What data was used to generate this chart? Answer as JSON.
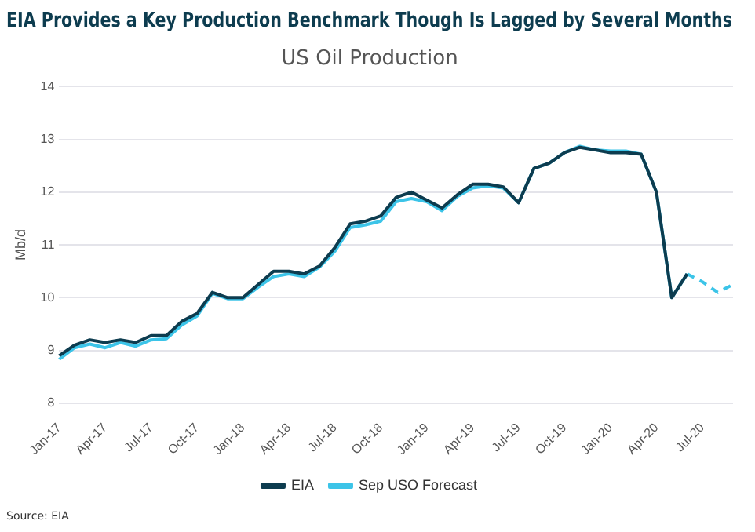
{
  "chart_data": {
    "type": "line",
    "title": "EIA Provides a Key Production Benchmark Though Is Lagged by Several Months",
    "subtitle": "US Oil Production",
    "ylabel": "Mb/d",
    "categories": [
      "Jan-17",
      null,
      null,
      "Apr-17",
      null,
      null,
      "Jul-17",
      null,
      null,
      "Oct-17",
      null,
      null,
      "Jan-18",
      null,
      null,
      "Apr-18",
      null,
      null,
      "Jul-18",
      null,
      null,
      "Oct-18",
      null,
      null,
      "Jan-19",
      null,
      null,
      "Apr-19",
      null,
      null,
      "Jul-19",
      null,
      null,
      "Oct-19",
      null,
      null,
      "Jan-20",
      null,
      null,
      "Apr-20",
      null,
      null,
      "Jul-20",
      null,
      null
    ],
    "series": [
      {
        "name": "Sep USO Forecast",
        "color": "#3cc4e8",
        "line_style": "solid",
        "values": [
          8.83,
          9.05,
          9.12,
          9.05,
          9.15,
          9.08,
          9.2,
          9.22,
          9.48,
          9.65,
          10.08,
          9.98,
          9.98,
          10.2,
          10.4,
          10.45,
          10.4,
          10.58,
          10.88,
          11.33,
          11.38,
          11.45,
          11.82,
          11.88,
          11.82,
          11.65,
          11.92,
          12.08,
          12.12,
          12.08,
          11.8,
          12.45,
          12.55,
          12.75,
          12.87,
          12.8,
          12.78,
          12.78,
          12.72,
          12.0,
          10.0,
          10.45,
          null,
          null,
          null
        ]
      },
      {
        "color": "#3cc4e8",
        "line_style": "dashed",
        "values": [
          null,
          null,
          null,
          null,
          null,
          null,
          null,
          null,
          null,
          null,
          null,
          null,
          null,
          null,
          null,
          null,
          null,
          null,
          null,
          null,
          null,
          null,
          null,
          null,
          null,
          null,
          null,
          null,
          null,
          null,
          null,
          null,
          null,
          null,
          null,
          null,
          null,
          null,
          null,
          null,
          null,
          10.45,
          10.3,
          10.1,
          10.25
        ]
      },
      {
        "name": "EIA",
        "color": "#0d3c4f",
        "line_style": "solid",
        "values": [
          8.9,
          9.1,
          9.2,
          9.15,
          9.2,
          9.15,
          9.28,
          9.28,
          9.55,
          9.7,
          10.1,
          10.0,
          10.0,
          10.25,
          10.5,
          10.5,
          10.45,
          10.6,
          10.95,
          11.4,
          11.45,
          11.55,
          11.9,
          12.0,
          11.85,
          11.7,
          11.95,
          12.15,
          12.15,
          12.1,
          11.8,
          12.45,
          12.55,
          12.75,
          12.85,
          12.8,
          12.75,
          12.75,
          12.72,
          12.0,
          10.0,
          10.45,
          null,
          null,
          null
        ]
      }
    ],
    "ylim": [
      8,
      14
    ],
    "yticks": [
      8,
      9,
      10,
      11,
      12,
      13,
      14
    ],
    "grid": "y",
    "legend": "bottom",
    "marker": "none",
    "annotations": [
      "Source: EIA"
    ]
  }
}
